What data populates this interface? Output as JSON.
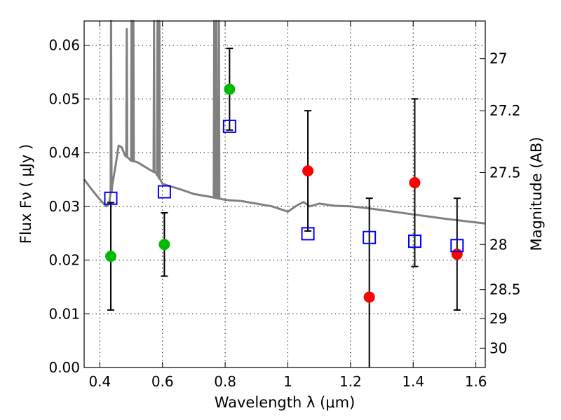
{
  "chart_data": {
    "type": "scatter",
    "xlabel": "Wavelength  λ (μm)",
    "ylabel": "Flux  Fν  ( μJy )",
    "ylabel_right": "Magnitude (AB)",
    "xlim": [
      0.35,
      1.63
    ],
    "ylim": [
      0.0,
      0.0645
    ],
    "x_ticks": [
      0.4,
      0.6,
      0.8,
      1.0,
      1.2,
      1.4,
      1.6
    ],
    "x_tick_labels": [
      "0.4",
      "0.6",
      "0.8",
      "1",
      "1.2",
      "1.4",
      "1.6"
    ],
    "y_ticks": [
      0.0,
      0.01,
      0.02,
      0.03,
      0.04,
      0.05,
      0.06
    ],
    "y_tick_labels": [
      "0.00",
      "0.01",
      "0.02",
      "0.03",
      "0.04",
      "0.05",
      "0.06"
    ],
    "right_ticks": [
      {
        "label": "27",
        "flux": 0.0575
      },
      {
        "label": "27.2",
        "flux": 0.0478
      },
      {
        "label": "27.5",
        "flux": 0.0363
      },
      {
        "label": "28",
        "flux": 0.0229
      },
      {
        "label": "28.5",
        "flux": 0.0145
      },
      {
        "label": "29",
        "flux": 0.0091
      },
      {
        "label": "30",
        "flux": 0.0036
      }
    ],
    "grid": true,
    "colors": {
      "model": "#808080",
      "green": "#00bb00",
      "red": "#ff0000",
      "square": "#0000ff",
      "errorbar": "#000000"
    },
    "series": [
      {
        "name": "observed flux (green)",
        "marker": "circle",
        "color": "#00bb00",
        "points": [
          {
            "x": 0.435,
            "y": 0.0207,
            "err": 0.01
          },
          {
            "x": 0.606,
            "y": 0.0229,
            "err": 0.0059
          },
          {
            "x": 0.814,
            "y": 0.0518,
            "err": 0.0076
          }
        ]
      },
      {
        "name": "observed flux (red)",
        "marker": "circle",
        "color": "#ff0000",
        "points": [
          {
            "x": 1.064,
            "y": 0.0366,
            "err": 0.0112
          },
          {
            "x": 1.26,
            "y": 0.0131,
            "err": 0.0184
          },
          {
            "x": 1.405,
            "y": 0.0344,
            "err": 0.0156
          },
          {
            "x": 1.54,
            "y": 0.0211,
            "err": 0.0104
          }
        ]
      },
      {
        "name": "model photometry",
        "marker": "square",
        "color": "#0000ff",
        "points": [
          {
            "x": 0.435,
            "y": 0.0315
          },
          {
            "x": 0.606,
            "y": 0.0327
          },
          {
            "x": 0.814,
            "y": 0.0449
          },
          {
            "x": 1.064,
            "y": 0.0249
          },
          {
            "x": 1.26,
            "y": 0.0242
          },
          {
            "x": 1.405,
            "y": 0.0235
          },
          {
            "x": 1.54,
            "y": 0.0227
          }
        ]
      },
      {
        "name": "model spectrum",
        "type": "line",
        "color": "#808080",
        "x": [
          0.35,
          0.38,
          0.4,
          0.42,
          0.43,
          0.44,
          0.45,
          0.46,
          0.47,
          0.48,
          0.5,
          0.52,
          0.54,
          0.56,
          0.58,
          0.6,
          0.62,
          0.65,
          0.7,
          0.75,
          0.8,
          0.85,
          0.9,
          0.95,
          1.0,
          1.03,
          1.05,
          1.07,
          1.1,
          1.15,
          1.2,
          1.25,
          1.3,
          1.4,
          1.5,
          1.6,
          1.63
        ],
        "y": [
          0.035,
          0.0327,
          0.0313,
          0.03,
          0.0305,
          0.034,
          0.0375,
          0.0413,
          0.041,
          0.0395,
          0.0385,
          0.0382,
          0.0375,
          0.0368,
          0.0362,
          0.0342,
          0.0338,
          0.0333,
          0.0323,
          0.0318,
          0.0312,
          0.031,
          0.0305,
          0.03,
          0.029,
          0.0302,
          0.0308,
          0.03,
          0.0305,
          0.0301,
          0.03,
          0.0297,
          0.0293,
          0.0285,
          0.0277,
          0.027,
          0.0268
        ],
        "emission_lines": [
          {
            "x": 0.436,
            "peak": 0.0645
          },
          {
            "x": 0.486,
            "peak": 0.063
          },
          {
            "x": 0.501,
            "peak": 0.0645
          },
          {
            "x": 0.507,
            "peak": 0.0645
          },
          {
            "x": 0.573,
            "peak": 0.0645
          },
          {
            "x": 0.584,
            "peak": 0.0645
          },
          {
            "x": 0.59,
            "peak": 0.0645
          },
          {
            "x": 0.765,
            "peak": 0.0645
          },
          {
            "x": 0.772,
            "peak": 0.0645
          },
          {
            "x": 0.78,
            "peak": 0.0645
          }
        ]
      }
    ]
  }
}
